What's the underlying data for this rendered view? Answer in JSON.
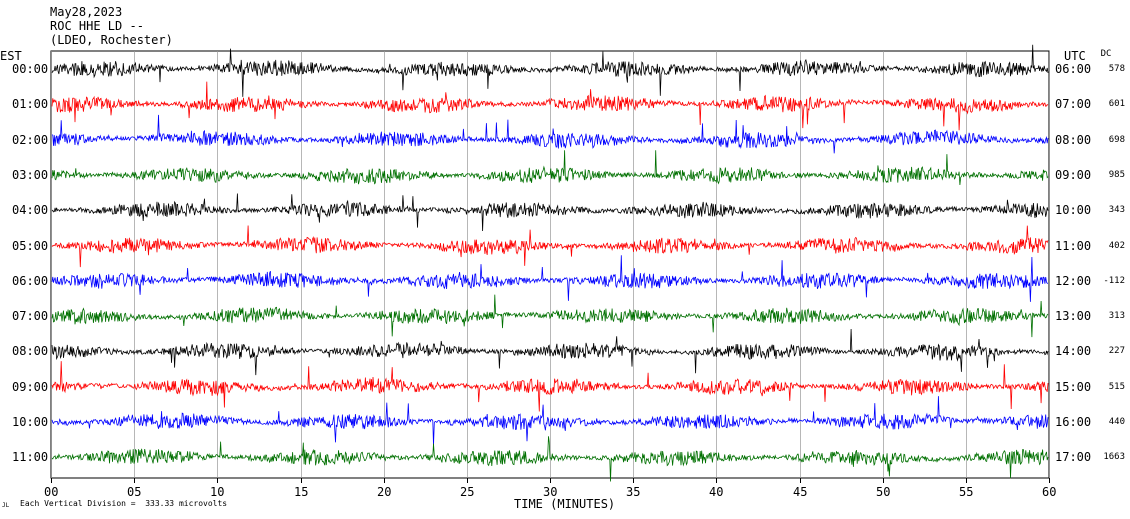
{
  "header": {
    "date": "May28,2023",
    "station": "ROC HHE LD --",
    "network": "(LDEO, Rochester)"
  },
  "axes": {
    "left_title": "EST",
    "right_title": "UTC",
    "dc_title": "DC",
    "xlabel": "TIME (MINUTES)",
    "footer": "Each Vertical Division =  333.33 microvolts",
    "footer_mark": "JL"
  },
  "chart_data": {
    "type": "line",
    "title": "May28,2023",
    "xlabel": "TIME (MINUTES)",
    "x_ticks": [
      "00",
      "05",
      "10",
      "15",
      "20",
      "25",
      "30",
      "35",
      "40",
      "45",
      "50",
      "55",
      "60"
    ],
    "xlim": [
      0,
      60
    ],
    "grid": "vertical lines every 5 minutes",
    "trace_colors": [
      "#000000",
      "#ff0000",
      "#0000ff",
      "#007000"
    ],
    "rows": [
      {
        "est": "00:00",
        "utc": "06:00",
        "dc": "578",
        "color": "#000000"
      },
      {
        "est": "01:00",
        "utc": "07:00",
        "dc": "601",
        "color": "#ff0000"
      },
      {
        "est": "02:00",
        "utc": "08:00",
        "dc": "698",
        "color": "#0000ff"
      },
      {
        "est": "03:00",
        "utc": "09:00",
        "dc": "985",
        "color": "#007000"
      },
      {
        "est": "04:00",
        "utc": "10:00",
        "dc": "343",
        "color": "#000000"
      },
      {
        "est": "05:00",
        "utc": "11:00",
        "dc": "402",
        "color": "#ff0000"
      },
      {
        "est": "06:00",
        "utc": "12:00",
        "dc": "-112",
        "color": "#0000ff"
      },
      {
        "est": "07:00",
        "utc": "13:00",
        "dc": "313",
        "color": "#007000"
      },
      {
        "est": "08:00",
        "utc": "14:00",
        "dc": "227",
        "color": "#000000"
      },
      {
        "est": "09:00",
        "utc": "15:00",
        "dc": "515",
        "color": "#ff0000"
      },
      {
        "est": "10:00",
        "utc": "16:00",
        "dc": "440",
        "color": "#0000ff"
      },
      {
        "est": "11:00",
        "utc": "17:00",
        "dc": "1663",
        "color": "#007000"
      }
    ]
  }
}
